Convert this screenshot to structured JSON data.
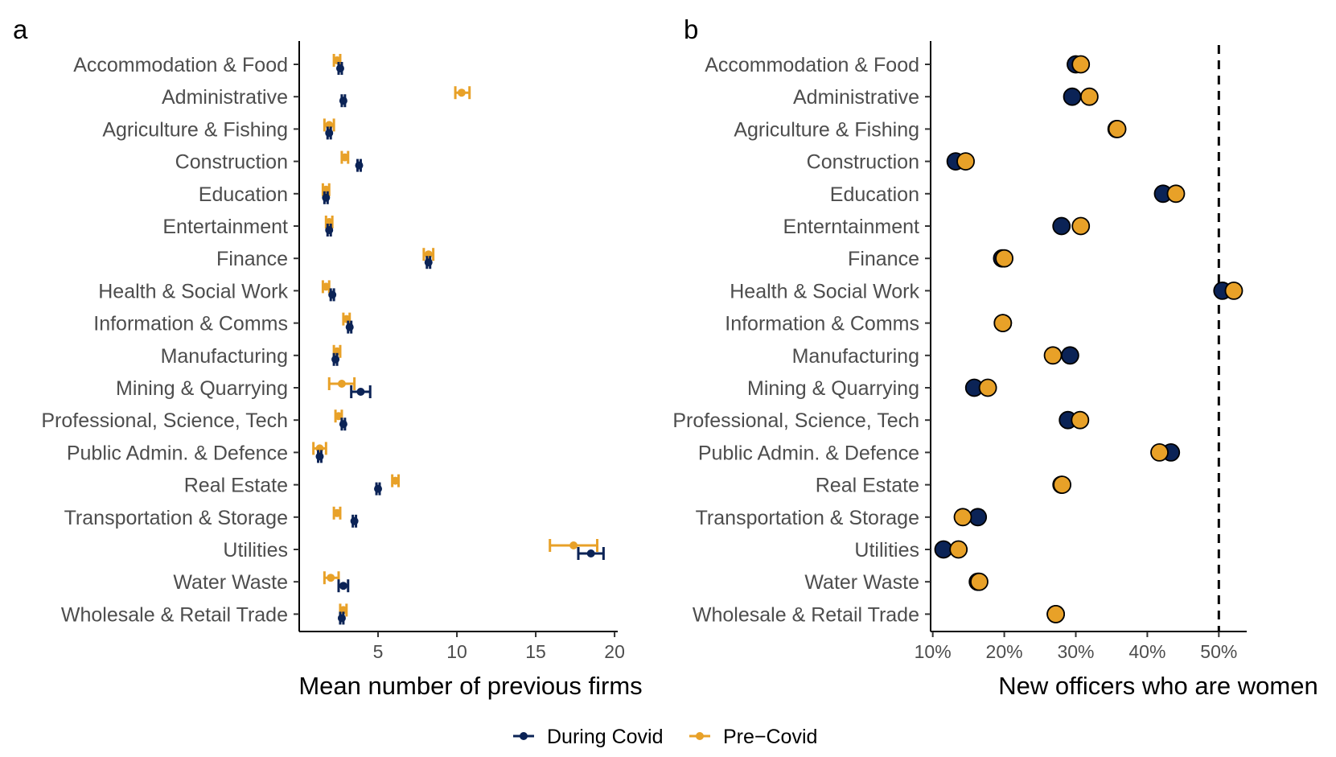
{
  "legend": {
    "during_label": "During Covid",
    "pre_label": "Pre−Covid"
  },
  "colors": {
    "during": "#0b2356",
    "pre": "#e8a128"
  },
  "chart_data": [
    {
      "panel": "a",
      "type": "dot-errorbar",
      "xlabel": "Mean number of previous firms",
      "xlim": [
        0,
        20.2
      ],
      "xticks": [
        5,
        10,
        15,
        20
      ],
      "categories": [
        "Accommodation & Food",
        "Administrative",
        "Agriculture & Fishing",
        "Construction",
        "Education",
        "Entertainment",
        "Finance",
        "Health & Social Work",
        "Information & Comms",
        "Manufacturing",
        "Mining & Quarrying",
        "Professional, Science, Tech",
        "Public Admin. & Defence",
        "Real Estate",
        "Transportation & Storage",
        "Utilities",
        "Water Waste",
        "Wholesale & Retail Trade"
      ],
      "series": [
        {
          "name": "Pre-Covid",
          "values": [
            2.4,
            10.3,
            1.9,
            2.9,
            1.7,
            1.9,
            8.2,
            1.7,
            3.0,
            2.4,
            2.7,
            2.5,
            1.3,
            6.1,
            2.4,
            17.4,
            2.0,
            2.8
          ],
          "lower": [
            2.2,
            9.9,
            1.6,
            2.7,
            1.5,
            1.7,
            7.9,
            1.5,
            2.8,
            2.2,
            1.9,
            2.3,
            0.9,
            5.9,
            2.2,
            15.9,
            1.6,
            2.6
          ],
          "upper": [
            2.6,
            10.8,
            2.2,
            3.1,
            1.9,
            2.1,
            8.5,
            1.9,
            3.2,
            2.6,
            3.5,
            2.7,
            1.7,
            6.3,
            2.6,
            18.9,
            2.5,
            3.0
          ]
        },
        {
          "name": "During Covid",
          "values": [
            2.6,
            2.8,
            1.9,
            3.8,
            1.7,
            1.9,
            8.2,
            2.1,
            3.2,
            2.3,
            3.9,
            2.8,
            1.3,
            5.0,
            3.5,
            18.5,
            2.8,
            2.7
          ],
          "lower": [
            2.5,
            2.7,
            1.8,
            3.7,
            1.6,
            1.8,
            8.1,
            2.0,
            3.1,
            2.2,
            3.3,
            2.7,
            1.2,
            4.9,
            3.4,
            17.7,
            2.5,
            2.6
          ],
          "upper": [
            2.7,
            2.9,
            2.0,
            3.9,
            1.8,
            2.0,
            8.3,
            2.2,
            3.3,
            2.4,
            4.5,
            2.9,
            1.4,
            5.1,
            3.6,
            19.3,
            3.1,
            2.8
          ]
        }
      ]
    },
    {
      "panel": "b",
      "type": "dot",
      "xlabel": "New officers who are women",
      "xlim": [
        9.7,
        53.9
      ],
      "xticks": [
        10,
        20,
        30,
        40,
        50
      ],
      "tick_labels": [
        "10%",
        "20%",
        "30%",
        "40%",
        "50%"
      ],
      "reference_line": 50,
      "categories": [
        "Accommodation & Food",
        "Administrative",
        "Agriculture & Fishing",
        "Construction",
        "Education",
        "Enterntainment",
        "Finance",
        "Health & Social Work",
        "Information & Comms",
        "Manufacturing",
        "Mining & Quarrying",
        "Professional, Science, Tech",
        "Public Admin. & Defence",
        "Real Estate",
        "Transportation & Storage",
        "Utilities",
        "Water Waste",
        "Wholesale & Retail Trade"
      ],
      "series": [
        {
          "name": "During Covid",
          "values": [
            30.0,
            29.5,
            35.7,
            13.2,
            42.2,
            28.0,
            19.7,
            50.5,
            19.8,
            29.2,
            15.8,
            28.9,
            43.3,
            28.0,
            16.3,
            11.5,
            16.3,
            27.2
          ]
        },
        {
          "name": "Pre-Covid",
          "values": [
            30.7,
            31.9,
            35.8,
            14.6,
            44.0,
            30.7,
            20.0,
            52.1,
            19.8,
            26.8,
            17.7,
            30.6,
            41.7,
            28.1,
            14.2,
            13.6,
            16.5,
            27.2
          ]
        }
      ]
    }
  ]
}
